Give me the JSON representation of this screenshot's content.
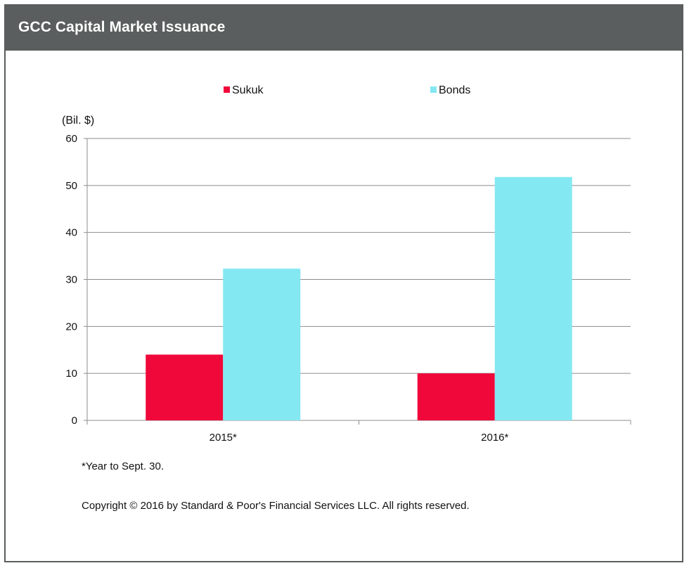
{
  "header": {
    "title": "GCC Capital Market Issuance"
  },
  "chart_data": {
    "type": "bar",
    "title": "GCC Capital Market Issuance",
    "ylabel": "(Bil. $)",
    "xlabel": "",
    "categories": [
      "2015*",
      "2016*"
    ],
    "series": [
      {
        "name": "Sukuk",
        "color": "#f0083a",
        "values": [
          14,
          10
        ]
      },
      {
        "name": "Bonds",
        "color": "#84e8f2",
        "values": [
          32.3,
          51.8
        ]
      }
    ],
    "ylim": [
      0,
      60
    ],
    "yticks": [
      0,
      10,
      20,
      30,
      40,
      50,
      60
    ],
    "grid": true,
    "legend_position": "top-center"
  },
  "notes": {
    "footnote": "*Year to Sept. 30.",
    "copyright": "Copyright © 2016 by Standard & Poor's Financial Services LLC. All rights reserved."
  },
  "colors": {
    "header_bg": "#5b5e5e",
    "grid": "#8c8c8c",
    "axis": "#8c8c8c"
  }
}
